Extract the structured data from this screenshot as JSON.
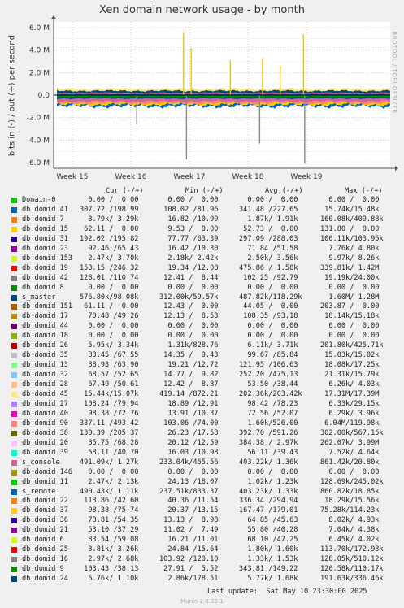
{
  "chart_data": {
    "type": "area",
    "title": "Xen domain network usage - by month",
    "ylabel": "bits in (-) / out (+) per second",
    "side_label": "RRDTOOL / TOBI OETIKER",
    "ylim": [
      -6.5,
      6.5
    ],
    "y_unit": "M",
    "y_ticks": [
      "6.0 M",
      "4.0 M",
      "2.0 M",
      "0.0",
      "-2.0 M",
      "-4.0 M",
      "-6.0 M"
    ],
    "y_tick_values": [
      6,
      4,
      2,
      0,
      -2,
      -4,
      -6
    ],
    "x_ticks": [
      "Week 15",
      "Week 16",
      "Week 17",
      "Week 18",
      "Week 19"
    ],
    "grid": true,
    "columns": [
      "Cur (-/+)",
      "Min (-/+)",
      "Avg (-/+)",
      "Max (-/+)"
    ],
    "spikes": [
      {
        "week": 16.9,
        "value": 5.6,
        "color": "#f2c200"
      },
      {
        "week": 16.95,
        "value": -5.7,
        "color": "#888888"
      },
      {
        "week": 17.03,
        "value": 4.2,
        "color": "#f2c200"
      },
      {
        "week": 17.7,
        "value": 3.1,
        "color": "#f2c200"
      },
      {
        "week": 18.25,
        "value": 3.3,
        "color": "#f2c200"
      },
      {
        "week": 18.2,
        "value": -4.3,
        "color": "#888888"
      },
      {
        "week": 18.95,
        "value": 5.4,
        "color": "#f2c200"
      },
      {
        "week": 18.97,
        "value": -6.1,
        "color": "#888888"
      },
      {
        "week": 18.55,
        "value": 2.6,
        "color": "#f2c200"
      },
      {
        "week": 16.1,
        "value": -2.6,
        "color": "#888888"
      }
    ],
    "series": [
      {
        "name": "Domain-0",
        "color": "#00cc00",
        "cur": "0.00 /  0.00",
        "min": "0.00 /  0.00",
        "avg": "0.00 /  0.00",
        "max": "0.00 /  0.00"
      },
      {
        "name": "db domid 41",
        "color": "#0066b3",
        "cur": "307.72 /198.99",
        "min": "108.02 /81.96",
        "avg": "341.48 /227.65",
        "max": "15.74k/15.48k"
      },
      {
        "name": "db domid 7",
        "color": "#ff8000",
        "cur": "3.79k/ 3.29k",
        "min": "16.82 /10.99",
        "avg": "1.87k/ 1.91k",
        "max": "160.08k/409.88k"
      },
      {
        "name": "db domid 15",
        "color": "#ffcc00",
        "cur": "62.11 /  0.00",
        "min": "9.53 /  0.00",
        "avg": "52.73 /  0.00",
        "max": "131.80 /  0.00"
      },
      {
        "name": "db domid 31",
        "color": "#330099",
        "cur": "192.02 /195.82",
        "min": "77.77 /63.39",
        "avg": "297.09 /288.03",
        "max": "100.11k/103.95k"
      },
      {
        "name": "db domid 23",
        "color": "#990099",
        "cur": "92.46 /65.43",
        "min": "16.42 /10.30",
        "avg": "71.84 /51.58",
        "max": "7.76k/ 4.80k"
      },
      {
        "name": "db domid 153",
        "color": "#ccff00",
        "cur": "2.47k/ 3.70k",
        "min": "2.18k/ 2.42k",
        "avg": "2.50k/ 3.56k",
        "max": "9.97k/ 8.26k"
      },
      {
        "name": "db domid 19",
        "color": "#ff0000",
        "cur": "153.15 /246.32",
        "min": "19.34 /12.08",
        "avg": "475.86 / 1.58k",
        "max": "339.81k/ 1.42M"
      },
      {
        "name": "db domid 42",
        "color": "#808080",
        "cur": "128.01 /110.74",
        "min": "12.41 /  8.44",
        "avg": "102.25 /92.79",
        "max": "19.19k/24.00k"
      },
      {
        "name": "db domid 8",
        "color": "#008f00",
        "cur": "0.00 /  0.00",
        "min": "0.00 /  0.00",
        "avg": "0.00 /  0.00",
        "max": "0.00 /  0.00"
      },
      {
        "name": "s_master",
        "color": "#00487d",
        "cur": "576.80k/98.08k",
        "min": "312.00k/59.57k",
        "avg": "487.82k/118.29k",
        "max": "1.60M/ 1.28M"
      },
      {
        "name": "db domid 151",
        "color": "#b35a00",
        "cur": "61.11 /  0.00",
        "min": "12.43 /  0.00",
        "avg": "44.05 /  0.00",
        "max": "203.87 /  0.00"
      },
      {
        "name": "db domid 17",
        "color": "#b38f00",
        "cur": "70.48 /49.26",
        "min": "12.13 /  8.53",
        "avg": "108.35 /93.18",
        "max": "18.14k/15.18k"
      },
      {
        "name": "db domid 44",
        "color": "#6b006b",
        "cur": "0.00 /  0.00",
        "min": "0.00 /  0.00",
        "avg": "0.00 /  0.00",
        "max": "0.00 /  0.00"
      },
      {
        "name": "db domid 18",
        "color": "#8fb300",
        "cur": "0.00 /  0.00",
        "min": "0.00 /  0.00",
        "avg": "0.00 /  0.00",
        "max": "0.00 /  0.00"
      },
      {
        "name": "db domid 26",
        "color": "#b30000",
        "cur": "5.95k/ 3.34k",
        "min": "1.31k/828.76",
        "avg": "6.11k/ 3.71k",
        "max": "201.80k/425.71k"
      },
      {
        "name": "db domid 35",
        "color": "#bebebe",
        "cur": "83.45 /67.55",
        "min": "14.35 /  9.43",
        "avg": "99.67 /85.84",
        "max": "15.03k/15.02k"
      },
      {
        "name": "db domid 13",
        "color": "#80ff80",
        "cur": "88.93 /63.90",
        "min": "19.21 /12.72",
        "avg": "121.95 /106.63",
        "max": "18.08k/17.25k"
      },
      {
        "name": "db domid 32",
        "color": "#80c9ff",
        "cur": "68.57 /52.65",
        "min": "14.77 /  9.82",
        "avg": "252.20 /475.13",
        "max": "21.31k/15.79k"
      },
      {
        "name": "db domid 28",
        "color": "#ffc080",
        "cur": "67.49 /50.61",
        "min": "12.42 /  8.87",
        "avg": "53.50 /38.44",
        "max": "6.26k/ 4.03k"
      },
      {
        "name": "db domid 45",
        "color": "#ffe680",
        "cur": "15.44k/15.07k",
        "min": "419.14 /872.21",
        "avg": "202.36k/203.42k",
        "max": "17.31M/17.39M"
      },
      {
        "name": "db domid 27",
        "color": "#aa80ff",
        "cur": "108.24 /79.94",
        "min": "18.89 /12.91",
        "avg": "98.42 /78.23",
        "max": "6.33k/29.15k"
      },
      {
        "name": "db domid 40",
        "color": "#ee00cc",
        "cur": "98.38 /72.76",
        "min": "13.91 /10.37",
        "avg": "72.56 /52.07",
        "max": "6.29k/ 3.96k"
      },
      {
        "name": "db domid 90",
        "color": "#ff8080",
        "cur": "337.11 /493.42",
        "min": "103.06 /74.00",
        "avg": "1.60k/526.00",
        "max": "6.04M/119.98k"
      },
      {
        "name": "db domid 38",
        "color": "#666600",
        "cur": "130.39 /205.37",
        "min": "26.23 /17.58",
        "avg": "392.70 /591.26",
        "max": "302.00k/567.15k"
      },
      {
        "name": "db domid 20",
        "color": "#ffbfff",
        "cur": "85.75 /68.28",
        "min": "20.12 /12.59",
        "avg": "384.38 / 2.97k",
        "max": "262.07k/ 3.99M"
      },
      {
        "name": "db domid 39",
        "color": "#00ffcc",
        "cur": "58.11 /40.70",
        "min": "16.03 /10.98",
        "avg": "56.11 /39.43",
        "max": "7.52k/ 4.64k"
      },
      {
        "name": "s_console",
        "color": "#cc6699",
        "cur": "491.09k/ 1.27k",
        "min": "233.04k/455.56",
        "avg": "403.22k/ 1.36k",
        "max": "861.42k/20.80k"
      },
      {
        "name": "db domid 146",
        "color": "#999900",
        "cur": "0.00 /  0.00",
        "min": "0.00 /  0.00",
        "avg": "0.00 /  0.00",
        "max": "0.00 /  0.00"
      },
      {
        "name": "db domid 11",
        "color": "#00cc00",
        "cur": "2.47k/ 2.13k",
        "min": "24.13 /18.07",
        "avg": "1.02k/ 1.23k",
        "max": "128.69k/245.02k"
      },
      {
        "name": "s_remote",
        "color": "#0066b3",
        "cur": "490.43k/ 1.11k",
        "min": "237.51k/833.37",
        "avg": "403.23k/ 1.33k",
        "max": "860.82k/18.85k"
      },
      {
        "name": "db domid 22",
        "color": "#ff8000",
        "cur": "113.86 /42.60",
        "min": "40.36 /11.54",
        "avg": "336.34 /294.94",
        "max": "18.29k/15.56k"
      },
      {
        "name": "db domid 37",
        "color": "#ffcc00",
        "cur": "98.38 /75.74",
        "min": "20.37 /13.15",
        "avg": "167.47 /179.01",
        "max": "75.28k/114.23k"
      },
      {
        "name": "db domid 36",
        "color": "#330099",
        "cur": "78.81 /54.35",
        "min": "13.13 /  8.98",
        "avg": "64.85 /45.63",
        "max": "8.02k/ 4.93k"
      },
      {
        "name": "db domid 21",
        "color": "#990099",
        "cur": "53.10 /37.29",
        "min": "11.02 /  7.49",
        "avg": "55.80 /40.28",
        "max": "7.04k/ 4.38k"
      },
      {
        "name": "db domid 6",
        "color": "#ccff00",
        "cur": "83.54 /59.08",
        "min": "16.21 /11.01",
        "avg": "68.10 /47.25",
        "max": "6.45k/ 4.02k"
      },
      {
        "name": "db domid 25",
        "color": "#ff0000",
        "cur": "3.81k/ 3.26k",
        "min": "24.84 /15.64",
        "avg": "1.80k/ 1.60k",
        "max": "113.70k/172.98k"
      },
      {
        "name": "db domid 16",
        "color": "#808080",
        "cur": "2.97k/ 2.68k",
        "min": "103.92 /120.10",
        "avg": "1.33k/ 1.53k",
        "max": "128.05k/510.12k"
      },
      {
        "name": "db domid 9",
        "color": "#008f00",
        "cur": "103.43 /38.13",
        "min": "27.91 /  5.52",
        "avg": "343.81 /149.22",
        "max": "120.58k/110.17k"
      },
      {
        "name": "db domid 24",
        "color": "#00487d",
        "cur": "5.76k/ 1.10k",
        "min": "2.86k/178.51",
        "avg": "5.77k/ 1.68k",
        "max": "191.63k/336.46k"
      }
    ]
  },
  "footer": {
    "last_update": "Last update:  Sat May 10 23:30:00 2025",
    "munin": "Munin 2.0.33-1"
  }
}
